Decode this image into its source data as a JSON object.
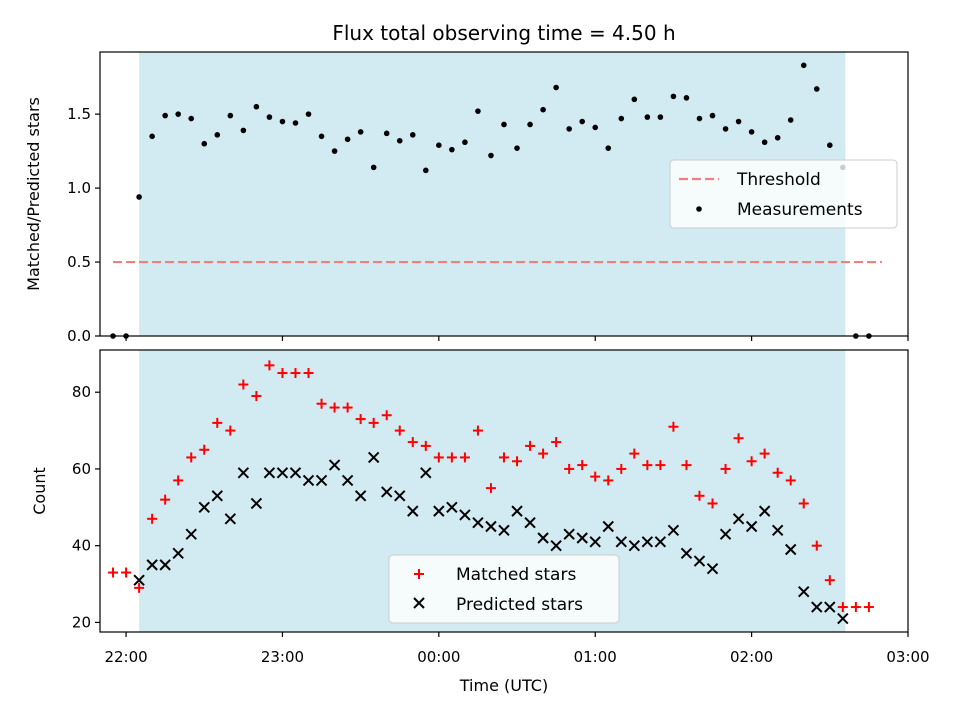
{
  "chart_data": {
    "title": "Flux total observing time = 4.50 h",
    "shared_x": {
      "label": "Time (UTC)",
      "type": "time",
      "range": [
        "21:50",
        "03:00"
      ],
      "tick_labels": [
        "22:00",
        "23:00",
        "00:00",
        "01:00",
        "02:00",
        "03:00"
      ],
      "tick_times": [
        "22:00",
        "23:00",
        "24:00",
        "25:00",
        "26:00",
        "27:00"
      ]
    },
    "observing_window": {
      "start": "22:05",
      "end": "02:36",
      "color": "#add8e6"
    },
    "panels": [
      {
        "type": "scatter",
        "ylabel": "Matched/Predicted stars",
        "ylim": [
          0,
          1.92
        ],
        "yticks": [
          "0.0",
          "0.5",
          "1.0",
          "1.5"
        ],
        "ytick_values": [
          0,
          0.5,
          1.0,
          1.5
        ],
        "legend": {
          "location": "center-right",
          "entries": [
            "Threshold",
            "Measurements"
          ]
        },
        "threshold": {
          "name": "Threshold",
          "value": 0.5,
          "x_range": [
            "21:55",
            "02:50"
          ],
          "color": "#f08080"
        },
        "series": [
          {
            "name": "Measurements",
            "color": "#000000",
            "marker": "dot",
            "points": [
              [
                "21:55",
                0.0
              ],
              [
                "22:00",
                0.0
              ],
              [
                "22:05",
                0.94
              ],
              [
                "22:10",
                1.35
              ],
              [
                "22:15",
                1.49
              ],
              [
                "22:20",
                1.5
              ],
              [
                "22:25",
                1.47
              ],
              [
                "22:30",
                1.3
              ],
              [
                "22:35",
                1.36
              ],
              [
                "22:40",
                1.49
              ],
              [
                "22:45",
                1.39
              ],
              [
                "22:50",
                1.55
              ],
              [
                "22:55",
                1.48
              ],
              [
                "23:00",
                1.45
              ],
              [
                "23:05",
                1.44
              ],
              [
                "23:10",
                1.5
              ],
              [
                "23:15",
                1.35
              ],
              [
                "23:20",
                1.25
              ],
              [
                "23:25",
                1.33
              ],
              [
                "23:30",
                1.38
              ],
              [
                "23:35",
                1.14
              ],
              [
                "23:40",
                1.37
              ],
              [
                "23:45",
                1.32
              ],
              [
                "23:50",
                1.36
              ],
              [
                "23:55",
                1.12
              ],
              [
                "24:00",
                1.29
              ],
              [
                "24:05",
                1.26
              ],
              [
                "24:10",
                1.31
              ],
              [
                "24:15",
                1.52
              ],
              [
                "24:20",
                1.22
              ],
              [
                "24:25",
                1.43
              ],
              [
                "24:30",
                1.27
              ],
              [
                "24:35",
                1.43
              ],
              [
                "24:40",
                1.53
              ],
              [
                "24:45",
                1.68
              ],
              [
                "24:50",
                1.4
              ],
              [
                "24:55",
                1.45
              ],
              [
                "25:00",
                1.41
              ],
              [
                "25:05",
                1.27
              ],
              [
                "25:10",
                1.47
              ],
              [
                "25:15",
                1.6
              ],
              [
                "25:20",
                1.48
              ],
              [
                "25:25",
                1.48
              ],
              [
                "25:30",
                1.62
              ],
              [
                "25:35",
                1.61
              ],
              [
                "25:40",
                1.47
              ],
              [
                "25:45",
                1.49
              ],
              [
                "25:50",
                1.4
              ],
              [
                "25:55",
                1.45
              ],
              [
                "26:00",
                1.38
              ],
              [
                "26:05",
                1.31
              ],
              [
                "26:10",
                1.34
              ],
              [
                "26:15",
                1.46
              ],
              [
                "26:20",
                1.83
              ],
              [
                "26:25",
                1.67
              ],
              [
                "26:30",
                1.29
              ],
              [
                "26:35",
                1.14
              ],
              [
                "26:40",
                0.0
              ],
              [
                "26:45",
                0.0
              ]
            ]
          }
        ]
      },
      {
        "type": "scatter",
        "ylabel": "Count",
        "ylim": [
          17.5,
          91
        ],
        "yticks": [
          "20",
          "40",
          "60",
          "80"
        ],
        "ytick_values": [
          20,
          40,
          60,
          80
        ],
        "legend": {
          "location": "bottom-center",
          "entries": [
            "Matched stars",
            "Predicted stars"
          ]
        },
        "series": [
          {
            "name": "Matched stars",
            "color": "#ff0000",
            "marker": "plus",
            "points": [
              [
                "21:55",
                33
              ],
              [
                "22:00",
                33
              ],
              [
                "22:05",
                29
              ],
              [
                "22:10",
                47
              ],
              [
                "22:15",
                52
              ],
              [
                "22:20",
                57
              ],
              [
                "22:25",
                63
              ],
              [
                "22:30",
                65
              ],
              [
                "22:35",
                72
              ],
              [
                "22:40",
                70
              ],
              [
                "22:45",
                82
              ],
              [
                "22:50",
                79
              ],
              [
                "22:55",
                87
              ],
              [
                "23:00",
                85
              ],
              [
                "23:05",
                85
              ],
              [
                "23:10",
                85
              ],
              [
                "23:15",
                77
              ],
              [
                "23:20",
                76
              ],
              [
                "23:25",
                76
              ],
              [
                "23:30",
                73
              ],
              [
                "23:35",
                72
              ],
              [
                "23:40",
                74
              ],
              [
                "23:45",
                70
              ],
              [
                "23:50",
                67
              ],
              [
                "23:55",
                66
              ],
              [
                "24:00",
                63
              ],
              [
                "24:05",
                63
              ],
              [
                "24:10",
                63
              ],
              [
                "24:15",
                70
              ],
              [
                "24:20",
                55
              ],
              [
                "24:25",
                63
              ],
              [
                "24:30",
                62
              ],
              [
                "24:35",
                66
              ],
              [
                "24:40",
                64
              ],
              [
                "24:45",
                67
              ],
              [
                "24:50",
                60
              ],
              [
                "24:55",
                61
              ],
              [
                "25:00",
                58
              ],
              [
                "25:05",
                57
              ],
              [
                "25:10",
                60
              ],
              [
                "25:15",
                64
              ],
              [
                "25:20",
                61
              ],
              [
                "25:25",
                61
              ],
              [
                "25:30",
                71
              ],
              [
                "25:35",
                61
              ],
              [
                "25:40",
                53
              ],
              [
                "25:45",
                51
              ],
              [
                "25:50",
                60
              ],
              [
                "25:55",
                68
              ],
              [
                "26:00",
                62
              ],
              [
                "26:05",
                64
              ],
              [
                "26:10",
                59
              ],
              [
                "26:15",
                57
              ],
              [
                "26:20",
                51
              ],
              [
                "26:25",
                40
              ],
              [
                "26:30",
                31
              ],
              [
                "26:35",
                24
              ],
              [
                "26:40",
                24
              ],
              [
                "26:45",
                24
              ]
            ]
          },
          {
            "name": "Predicted stars",
            "color": "#000000",
            "marker": "x",
            "points": [
              [
                "22:05",
                31
              ],
              [
                "22:10",
                35
              ],
              [
                "22:15",
                35
              ],
              [
                "22:20",
                38
              ],
              [
                "22:25",
                43
              ],
              [
                "22:30",
                50
              ],
              [
                "22:35",
                53
              ],
              [
                "22:40",
                47
              ],
              [
                "22:45",
                59
              ],
              [
                "22:50",
                51
              ],
              [
                "22:55",
                59
              ],
              [
                "23:00",
                59
              ],
              [
                "23:05",
                59
              ],
              [
                "23:10",
                57
              ],
              [
                "23:15",
                57
              ],
              [
                "23:20",
                61
              ],
              [
                "23:25",
                57
              ],
              [
                "23:30",
                53
              ],
              [
                "23:35",
                63
              ],
              [
                "23:40",
                54
              ],
              [
                "23:45",
                53
              ],
              [
                "23:50",
                49
              ],
              [
                "23:55",
                59
              ],
              [
                "24:00",
                49
              ],
              [
                "24:05",
                50
              ],
              [
                "24:10",
                48
              ],
              [
                "24:15",
                46
              ],
              [
                "24:20",
                45
              ],
              [
                "24:25",
                44
              ],
              [
                "24:30",
                49
              ],
              [
                "24:35",
                46
              ],
              [
                "24:40",
                42
              ],
              [
                "24:45",
                40
              ],
              [
                "24:50",
                43
              ],
              [
                "24:55",
                42
              ],
              [
                "25:00",
                41
              ],
              [
                "25:05",
                45
              ],
              [
                "25:10",
                41
              ],
              [
                "25:15",
                40
              ],
              [
                "25:20",
                41
              ],
              [
                "25:25",
                41
              ],
              [
                "25:30",
                44
              ],
              [
                "25:35",
                38
              ],
              [
                "25:40",
                36
              ],
              [
                "25:45",
                34
              ],
              [
                "25:50",
                43
              ],
              [
                "25:55",
                47
              ],
              [
                "26:00",
                45
              ],
              [
                "26:05",
                49
              ],
              [
                "26:10",
                44
              ],
              [
                "26:15",
                39
              ],
              [
                "26:20",
                28
              ],
              [
                "26:25",
                24
              ],
              [
                "26:30",
                24
              ],
              [
                "26:35",
                21
              ]
            ]
          }
        ]
      }
    ]
  }
}
